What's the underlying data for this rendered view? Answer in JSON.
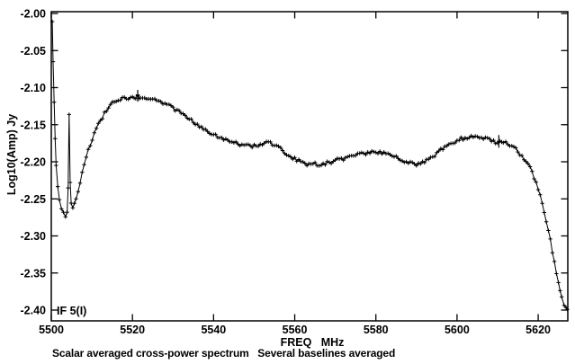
{
  "chart_data": {
    "type": "line",
    "title": "Scalar averaged cross-power spectrum   Several baselines averaged",
    "xlabel": "FREQ   MHz",
    "ylabel": "Log10(Amp) Jy",
    "annotation": "IF 5(I)",
    "legend": null,
    "grid": false,
    "marker": "+",
    "line_color": "#000000",
    "background": "#ffffff",
    "xlim": [
      5500,
      5627.3
    ],
    "ylim": [
      -2.415,
      -1.997
    ],
    "x_ticks": [
      5500,
      5520,
      5540,
      5560,
      5580,
      5600,
      5620
    ],
    "x_tick_labels": [
      "5500",
      "5520",
      "5540",
      "5560",
      "5580",
      "5600",
      "5620"
    ],
    "y_ticks": [
      -2.0,
      -2.05,
      -2.1,
      -2.15,
      -2.2,
      -2.25,
      -2.3,
      -2.35,
      -2.4
    ],
    "y_tick_labels": [
      "-2.00",
      "-2.05",
      "-2.10",
      "-2.15",
      "-2.20",
      "-2.25",
      "-2.30",
      "-2.35",
      "-2.40"
    ],
    "channel_spacing_mhz": 0.45,
    "noise_amplitude": 0.0022,
    "points": [
      [
        5500.25,
        -2.012
      ],
      [
        5500.45,
        -2.065
      ],
      [
        5500.7,
        -2.12
      ],
      [
        5500.95,
        -2.17
      ],
      [
        5501.2,
        -2.205
      ],
      [
        5501.6,
        -2.235
      ],
      [
        5502.0,
        -2.252
      ],
      [
        5502.5,
        -2.262
      ],
      [
        5503.0,
        -2.268
      ],
      [
        5503.5,
        -2.272
      ],
      [
        5503.9,
        -2.266
      ],
      [
        5504.15,
        -2.235
      ],
      [
        5504.4,
        -2.138
      ],
      [
        5504.65,
        -2.23
      ],
      [
        5504.9,
        -2.255
      ],
      [
        5505.3,
        -2.262
      ],
      [
        5505.7,
        -2.258
      ],
      [
        5506.1,
        -2.25
      ],
      [
        5506.6,
        -2.239
      ],
      [
        5507.1,
        -2.227
      ],
      [
        5507.6,
        -2.215
      ],
      [
        5508.1,
        -2.204
      ],
      [
        5508.6,
        -2.194
      ],
      [
        5509.1,
        -2.185
      ],
      [
        5509.6,
        -2.177
      ],
      [
        5510.1,
        -2.169
      ],
      [
        5510.6,
        -2.163
      ],
      [
        5511.1,
        -2.156
      ],
      [
        5511.6,
        -2.15
      ],
      [
        5512.1,
        -2.145
      ],
      [
        5512.6,
        -2.14
      ],
      [
        5513.1,
        -2.135
      ],
      [
        5513.6,
        -2.131
      ],
      [
        5514.1,
        -2.127
      ],
      [
        5514.6,
        -2.124
      ],
      [
        5515.1,
        -2.121
      ],
      [
        5516,
        -2.118
      ],
      [
        5517,
        -2.116
      ],
      [
        5518,
        -2.114
      ],
      [
        5519,
        -2.116
      ],
      [
        5520,
        -2.113
      ],
      [
        5520.8,
        -2.116
      ],
      [
        5521.3,
        -2.11
      ],
      [
        5522,
        -2.115
      ],
      [
        5523,
        -2.113
      ],
      [
        5524,
        -2.116
      ],
      [
        5525,
        -2.114
      ],
      [
        5526,
        -2.117
      ],
      [
        5527,
        -2.119
      ],
      [
        5528,
        -2.121
      ],
      [
        5529,
        -2.124
      ],
      [
        5530,
        -2.127
      ],
      [
        5531,
        -2.131
      ],
      [
        5532,
        -2.134
      ],
      [
        5533,
        -2.138
      ],
      [
        5534,
        -2.142
      ],
      [
        5535,
        -2.146
      ],
      [
        5536,
        -2.15
      ],
      [
        5537,
        -2.154
      ],
      [
        5538,
        -2.157
      ],
      [
        5539,
        -2.16
      ],
      [
        5540,
        -2.163
      ],
      [
        5541,
        -2.166
      ],
      [
        5542,
        -2.168
      ],
      [
        5543,
        -2.17
      ],
      [
        5544,
        -2.172
      ],
      [
        5545,
        -2.174
      ],
      [
        5546,
        -2.176
      ],
      [
        5547,
        -2.177
      ],
      [
        5548,
        -2.178
      ],
      [
        5549,
        -2.179
      ],
      [
        5550,
        -2.179
      ],
      [
        5551,
        -2.178
      ],
      [
        5552,
        -2.176
      ],
      [
        5553,
        -2.173
      ],
      [
        5554,
        -2.175
      ],
      [
        5555,
        -2.178
      ],
      [
        5556,
        -2.181
      ],
      [
        5557,
        -2.185
      ],
      [
        5558,
        -2.189
      ],
      [
        5559,
        -2.193
      ],
      [
        5560,
        -2.196
      ],
      [
        5561,
        -2.199
      ],
      [
        5562,
        -2.201
      ],
      [
        5563,
        -2.203
      ],
      [
        5564,
        -2.204
      ],
      [
        5565,
        -2.203
      ],
      [
        5566,
        -2.204
      ],
      [
        5567,
        -2.203
      ],
      [
        5568,
        -2.201
      ],
      [
        5569,
        -2.2
      ],
      [
        5570,
        -2.198
      ],
      [
        5571,
        -2.197
      ],
      [
        5572,
        -2.196
      ],
      [
        5573,
        -2.194
      ],
      [
        5574,
        -2.192
      ],
      [
        5575,
        -2.191
      ],
      [
        5576,
        -2.19
      ],
      [
        5577,
        -2.189
      ],
      [
        5578,
        -2.188
      ],
      [
        5579,
        -2.187
      ],
      [
        5580,
        -2.187
      ],
      [
        5581,
        -2.187
      ],
      [
        5582,
        -2.188
      ],
      [
        5583,
        -2.189
      ],
      [
        5584,
        -2.191
      ],
      [
        5585,
        -2.193
      ],
      [
        5586,
        -2.196
      ],
      [
        5587,
        -2.199
      ],
      [
        5588,
        -2.201
      ],
      [
        5589,
        -2.203
      ],
      [
        5590,
        -2.204
      ],
      [
        5591,
        -2.203
      ],
      [
        5592,
        -2.2
      ],
      [
        5593,
        -2.197
      ],
      [
        5594,
        -2.193
      ],
      [
        5595,
        -2.189
      ],
      [
        5596,
        -2.184
      ],
      [
        5597,
        -2.18
      ],
      [
        5598,
        -2.177
      ],
      [
        5599,
        -2.174
      ],
      [
        5600,
        -2.171
      ],
      [
        5601,
        -2.169
      ],
      [
        5602,
        -2.168
      ],
      [
        5603,
        -2.167
      ],
      [
        5604,
        -2.167
      ],
      [
        5605,
        -2.168
      ],
      [
        5606,
        -2.169
      ],
      [
        5607,
        -2.169
      ],
      [
        5608,
        -2.17
      ],
      [
        5609,
        -2.172
      ],
      [
        5610,
        -2.176
      ],
      [
        5610.6,
        -2.171
      ],
      [
        5611.4,
        -2.173
      ],
      [
        5612,
        -2.174
      ],
      [
        5613,
        -2.177
      ],
      [
        5614,
        -2.181
      ],
      [
        5615,
        -2.186
      ],
      [
        5616,
        -2.192
      ],
      [
        5617,
        -2.199
      ],
      [
        5618,
        -2.208
      ],
      [
        5619,
        -2.221
      ],
      [
        5620,
        -2.236
      ],
      [
        5621,
        -2.256
      ],
      [
        5622,
        -2.279
      ],
      [
        5623,
        -2.306
      ],
      [
        5624,
        -2.336
      ],
      [
        5625,
        -2.363
      ],
      [
        5625.8,
        -2.383
      ],
      [
        5626.4,
        -2.393
      ],
      [
        5626.9,
        -2.398
      ],
      [
        5627.2,
        -2.399
      ]
    ],
    "error_bars": [
      {
        "x": 5521.3,
        "lo": -2.119,
        "hi": -2.103
      },
      {
        "x": 5610.3,
        "lo": -2.181,
        "hi": -2.164
      }
    ]
  }
}
